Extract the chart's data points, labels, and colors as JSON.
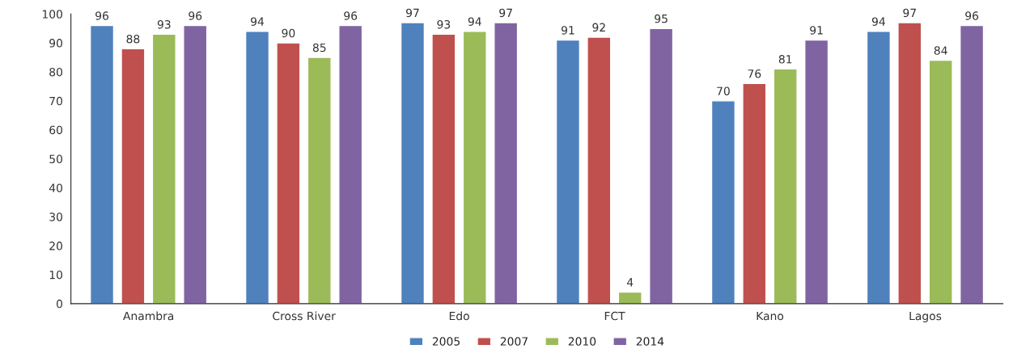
{
  "chart_data": {
    "type": "bar",
    "categories": [
      "Anambra",
      "Cross River",
      "Edo",
      "FCT",
      "Kano",
      "Lagos"
    ],
    "series": [
      {
        "name": "2005",
        "color": "#4f81bd",
        "values": [
          96,
          94,
          97,
          91,
          70,
          94
        ]
      },
      {
        "name": "2007",
        "color": "#c0504d",
        "values": [
          88,
          90,
          93,
          92,
          76,
          97
        ]
      },
      {
        "name": "2010",
        "color": "#9bbb59",
        "values": [
          93,
          85,
          94,
          4,
          81,
          84
        ]
      },
      {
        "name": "2014",
        "color": "#8064a2",
        "values": [
          96,
          96,
          97,
          95,
          91,
          96
        ]
      }
    ],
    "ylim": [
      0,
      100
    ],
    "yticks": [
      0,
      10,
      20,
      30,
      40,
      50,
      60,
      70,
      80,
      90,
      100
    ],
    "grid": false,
    "legend": "bottom",
    "data_labels": true
  }
}
